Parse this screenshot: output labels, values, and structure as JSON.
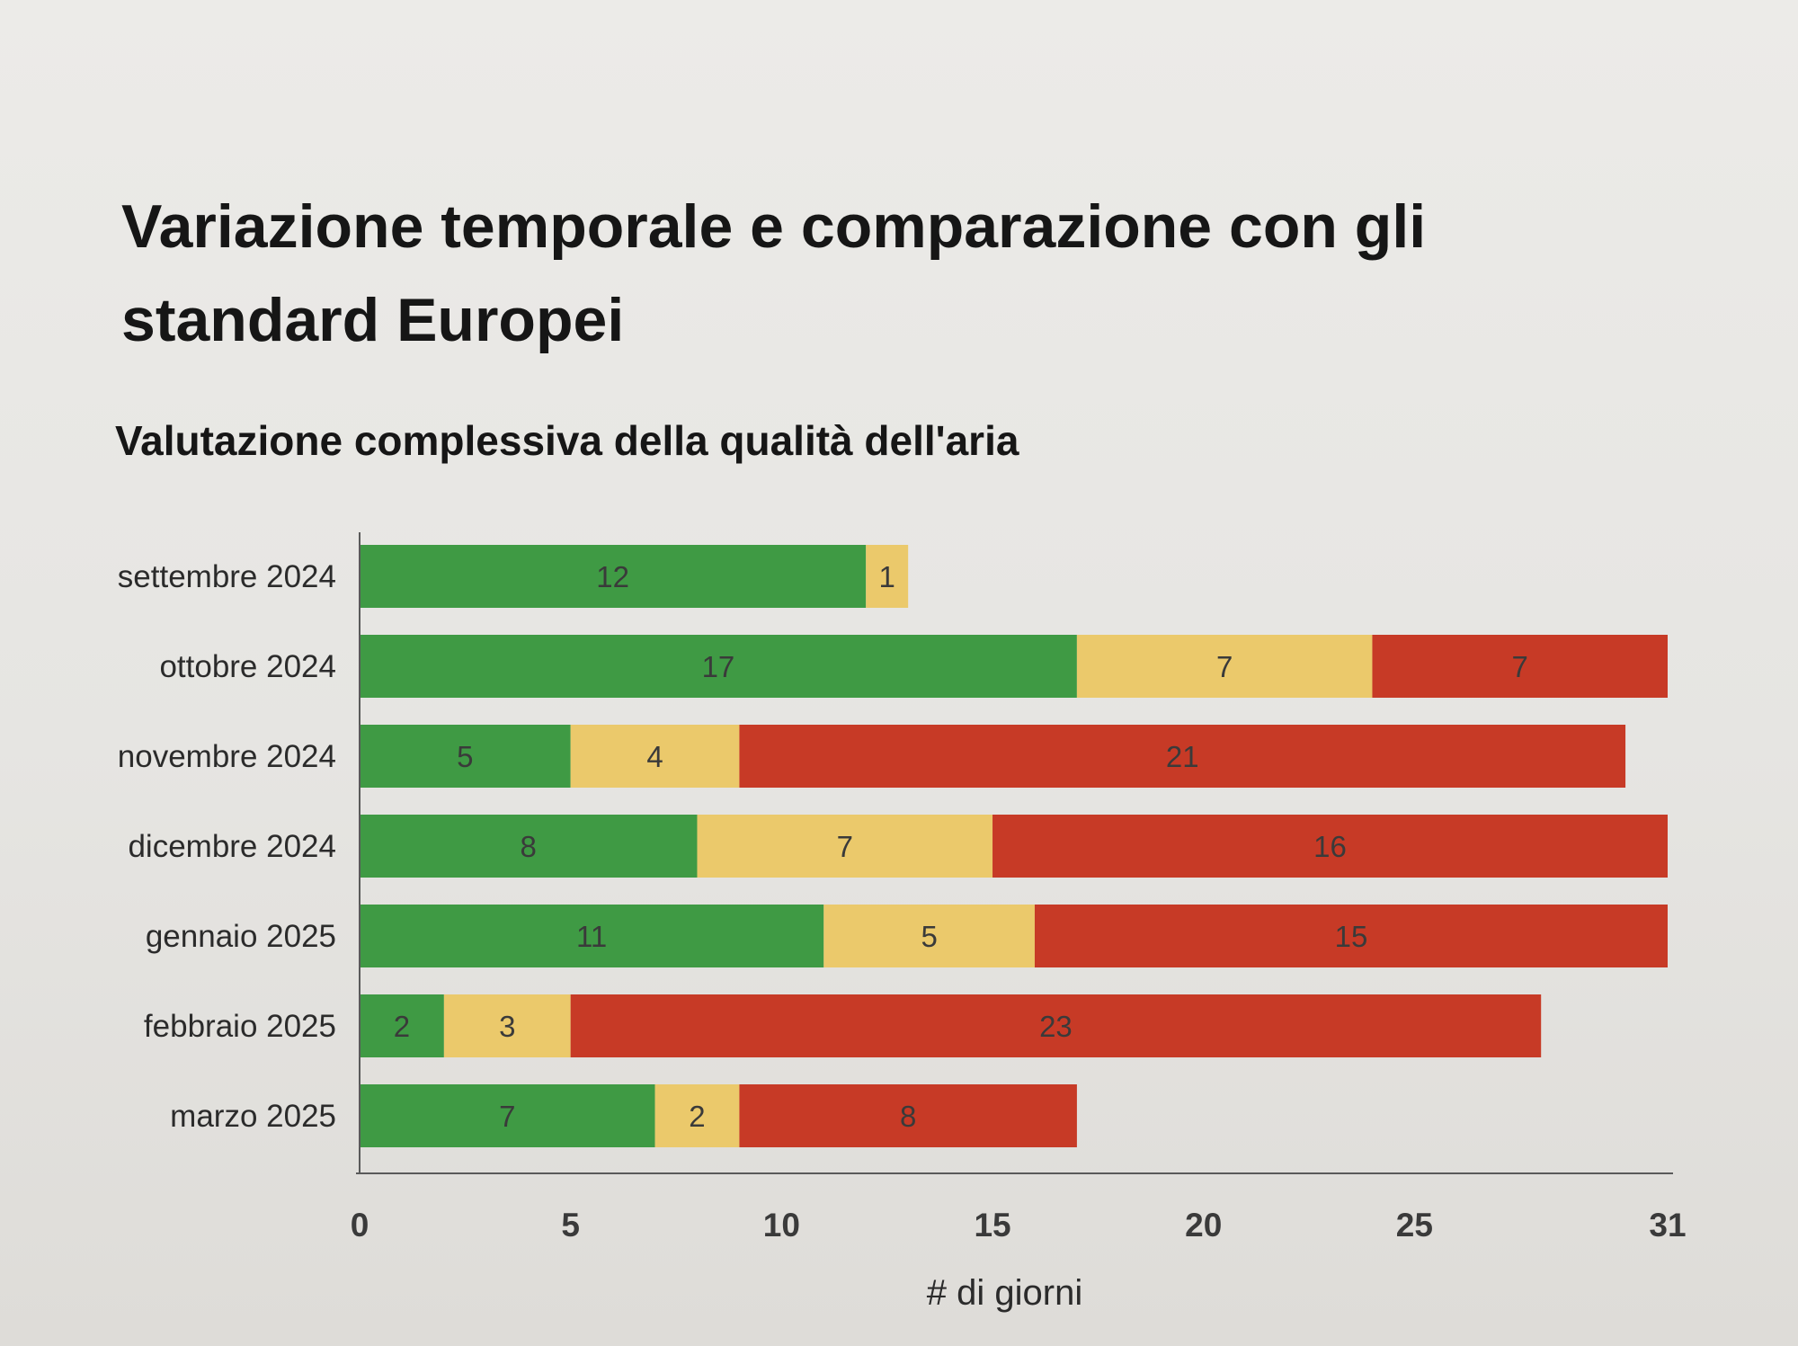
{
  "page": {
    "title": "Variazione temporale e comparazione con gli standard Europei",
    "subtitle": "Valutazione complessiva della qualità dell'aria"
  },
  "chart_data": {
    "type": "bar",
    "orientation": "horizontal",
    "stacked": true,
    "categories": [
      "settembre 2024",
      "ottobre 2024",
      "novembre 2024",
      "dicembre 2024",
      "gennaio 2025",
      "febbraio 2025",
      "marzo 2025"
    ],
    "series": [
      {
        "color": "#3f9a44",
        "values": [
          12,
          17,
          5,
          8,
          11,
          2,
          7
        ]
      },
      {
        "color": "#ebc96b",
        "values": [
          1,
          7,
          4,
          7,
          5,
          3,
          2
        ]
      },
      {
        "color": "#c73a26",
        "values": [
          0,
          7,
          21,
          16,
          15,
          23,
          8
        ]
      }
    ],
    "xlabel": "# di giorni",
    "ylabel": "",
    "xlim": [
      0,
      31
    ],
    "xticks": [
      0,
      5,
      10,
      15,
      20,
      25,
      31
    ],
    "grid": false,
    "legend": "none",
    "data_labels": true
  }
}
